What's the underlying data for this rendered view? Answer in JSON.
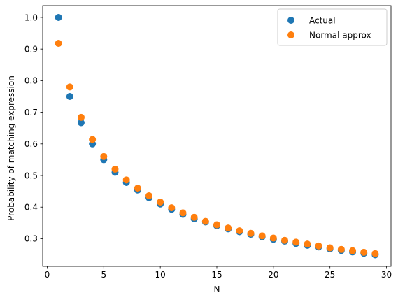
{
  "chart_data": {
    "type": "scatter",
    "title": "",
    "xlabel": "N",
    "ylabel": "Probability of matching expression",
    "xlim": [
      -0.4,
      30.4
    ],
    "ylim": [
      0.2125,
      1.0375
    ],
    "xticks": [
      0,
      5,
      10,
      15,
      20,
      25,
      30
    ],
    "yticks": [
      0.3,
      0.4,
      0.5,
      0.6,
      0.7,
      0.8,
      0.9,
      1.0
    ],
    "ytick_labels": [
      "0.3",
      "0.4",
      "0.5",
      "0.6",
      "0.7",
      "0.8",
      "0.9",
      "1.0"
    ],
    "grid": false,
    "legend_position": "top-right",
    "x": [
      1,
      2,
      3,
      4,
      5,
      6,
      7,
      8,
      9,
      10,
      11,
      12,
      13,
      14,
      15,
      16,
      17,
      18,
      19,
      20,
      21,
      22,
      23,
      24,
      25,
      26,
      27,
      28,
      29
    ],
    "series": [
      {
        "name": "Actual",
        "color": "#1f77b4",
        "values": [
          1.0,
          0.75,
          0.667,
          0.6,
          0.55,
          0.51,
          0.478,
          0.454,
          0.43,
          0.41,
          0.393,
          0.377,
          0.363,
          0.353,
          0.341,
          0.331,
          0.322,
          0.314,
          0.306,
          0.298,
          0.292,
          0.285,
          0.279,
          0.274,
          0.268,
          0.263,
          0.258,
          0.254,
          0.249
        ]
      },
      {
        "name": "Normal approx",
        "color": "#ff7f0e",
        "values": [
          0.918,
          0.78,
          0.684,
          0.614,
          0.56,
          0.52,
          0.486,
          0.46,
          0.436,
          0.416,
          0.398,
          0.382,
          0.368,
          0.355,
          0.344,
          0.334,
          0.325,
          0.317,
          0.309,
          0.302,
          0.295,
          0.289,
          0.283,
          0.277,
          0.271,
          0.266,
          0.262,
          0.257,
          0.253
        ]
      }
    ]
  }
}
